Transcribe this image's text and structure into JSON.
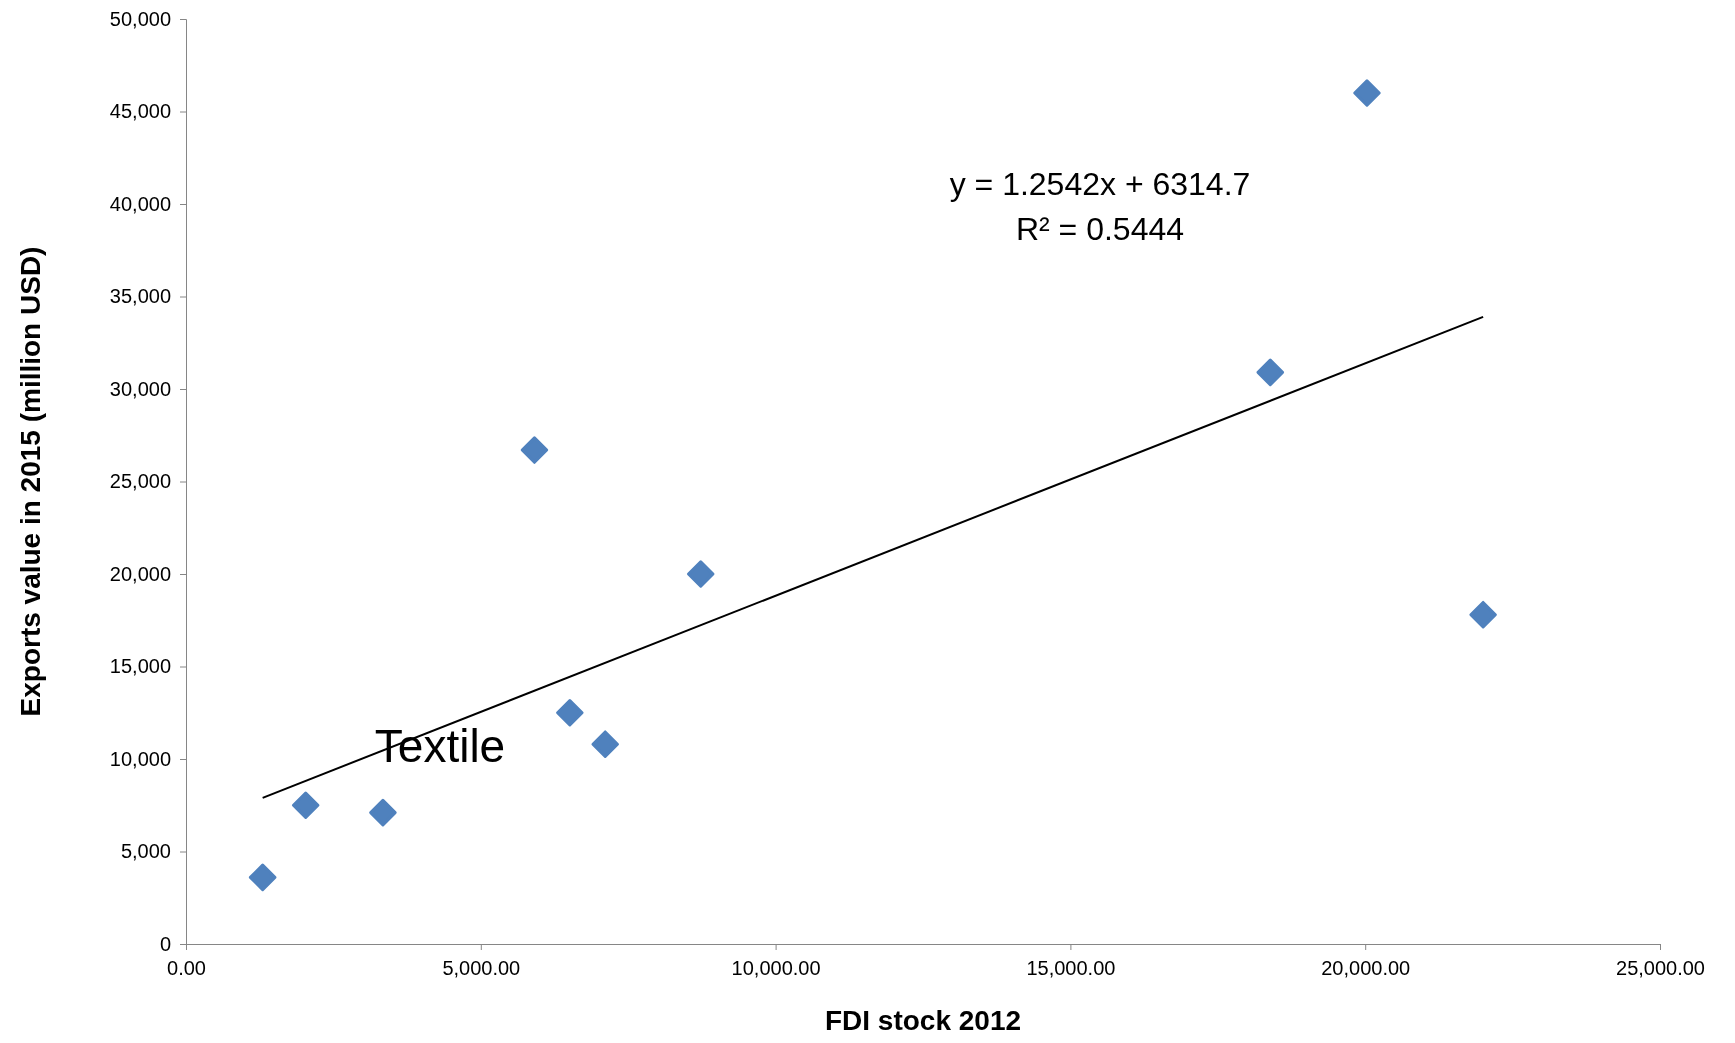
{
  "chart_data": {
    "type": "scatter",
    "xlabel": "FDI stock  2012",
    "ylabel": "Exports  value in 2015 (million USD)",
    "marker": "diamond",
    "grid": false,
    "xlim": [
      0,
      25000
    ],
    "ylim": [
      0,
      50000
    ],
    "xticks": [
      {
        "value": 0,
        "label": "0.00"
      },
      {
        "value": 5000,
        "label": "5,000.00"
      },
      {
        "value": 10000,
        "label": "10,000.00"
      },
      {
        "value": 15000,
        "label": "15,000.00"
      },
      {
        "value": 20000,
        "label": "20,000.00"
      },
      {
        "value": 25000,
        "label": "25,000.00"
      }
    ],
    "yticks": [
      0,
      {
        "value": 5000,
        "label": "5,000"
      },
      {
        "value": 10000,
        "label": "10,000"
      },
      {
        "value": 15000,
        "label": "15,000"
      },
      {
        "value": 20000,
        "label": "20,000"
      },
      {
        "value": 25000,
        "label": "25,000"
      },
      {
        "value": 30000,
        "label": "30,000"
      },
      {
        "value": 35000,
        "label": "35,000"
      },
      {
        "value": 40000,
        "label": "40,000"
      },
      {
        "value": 45000,
        "label": "45,000"
      },
      {
        "value": 50000,
        "label": "50,000"
      }
    ],
    "series": [
      {
        "color": "#4f81bd",
        "x": [
          1300,
          2030,
          3340,
          5910,
          6510,
          7110,
          8730,
          18390,
          20030,
          22000
        ],
        "values": [
          3600,
          7500,
          7100,
          26700,
          12500,
          10800,
          20000,
          30900,
          46000,
          17800
        ]
      },
      {
        "type": "line",
        "color": "#000000",
        "marker": "none",
        "x": [
          1300,
          22000
        ],
        "values": [
          7900,
          33900
        ]
      }
    ],
    "annotations": [
      "y = 1.2542x + 6314.7",
      "R² = 0.5444",
      "Textile"
    ]
  }
}
